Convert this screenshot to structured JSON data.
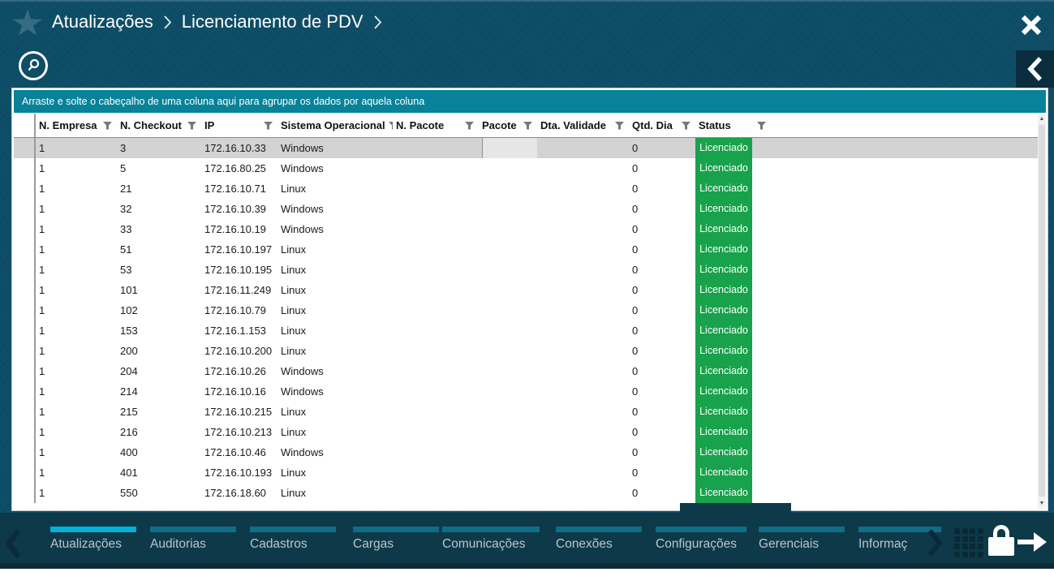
{
  "header": {
    "breadcrumb": [
      "Atualizações",
      "Licenciamento de PDV"
    ]
  },
  "group_bar": {
    "text": "Arraste e solte o cabeçalho de uma coluna aqui para agrupar os dados por aquela coluna"
  },
  "table": {
    "columns": [
      "N. Empresa",
      "N. Checkout",
      "IP",
      "Sistema Operacional",
      "N. Pacote",
      "Pacote",
      "Dta. Validade",
      "Qtd. Dia",
      "Status"
    ],
    "selected_row_index": 0,
    "inline_editor": {
      "column": "Pacote",
      "value": ""
    },
    "rows": [
      {
        "empresa": "1",
        "checkout": "3",
        "ip": "172.16.10.33",
        "so": "Windows",
        "n_pacote": "",
        "pacote": "",
        "dta_validade": "",
        "qtd_dia": "0",
        "status": "Licenciado"
      },
      {
        "empresa": "1",
        "checkout": "5",
        "ip": "172.16.80.25",
        "so": "Windows",
        "n_pacote": "",
        "pacote": "",
        "dta_validade": "",
        "qtd_dia": "0",
        "status": "Licenciado"
      },
      {
        "empresa": "1",
        "checkout": "21",
        "ip": "172.16.10.71",
        "so": "Linux",
        "n_pacote": "",
        "pacote": "",
        "dta_validade": "",
        "qtd_dia": "0",
        "status": "Licenciado"
      },
      {
        "empresa": "1",
        "checkout": "32",
        "ip": "172.16.10.39",
        "so": "Windows",
        "n_pacote": "",
        "pacote": "",
        "dta_validade": "",
        "qtd_dia": "0",
        "status": "Licenciado"
      },
      {
        "empresa": "1",
        "checkout": "33",
        "ip": "172.16.10.19",
        "so": "Windows",
        "n_pacote": "",
        "pacote": "",
        "dta_validade": "",
        "qtd_dia": "0",
        "status": "Licenciado"
      },
      {
        "empresa": "1",
        "checkout": "51",
        "ip": "172.16.10.197",
        "so": "Linux",
        "n_pacote": "",
        "pacote": "",
        "dta_validade": "",
        "qtd_dia": "0",
        "status": "Licenciado"
      },
      {
        "empresa": "1",
        "checkout": "53",
        "ip": "172.16.10.195",
        "so": "Linux",
        "n_pacote": "",
        "pacote": "",
        "dta_validade": "",
        "qtd_dia": "0",
        "status": "Licenciado"
      },
      {
        "empresa": "1",
        "checkout": "101",
        "ip": "172.16.11.249",
        "so": "Linux",
        "n_pacote": "",
        "pacote": "",
        "dta_validade": "",
        "qtd_dia": "0",
        "status": "Licenciado"
      },
      {
        "empresa": "1",
        "checkout": "102",
        "ip": "172.16.10.79",
        "so": "Linux",
        "n_pacote": "",
        "pacote": "",
        "dta_validade": "",
        "qtd_dia": "0",
        "status": "Licenciado"
      },
      {
        "empresa": "1",
        "checkout": "153",
        "ip": "172.16.1.153",
        "so": "Linux",
        "n_pacote": "",
        "pacote": "",
        "dta_validade": "",
        "qtd_dia": "0",
        "status": "Licenciado"
      },
      {
        "empresa": "1",
        "checkout": "200",
        "ip": "172.16.10.200",
        "so": "Linux",
        "n_pacote": "",
        "pacote": "",
        "dta_validade": "",
        "qtd_dia": "0",
        "status": "Licenciado"
      },
      {
        "empresa": "1",
        "checkout": "204",
        "ip": "172.16.10.26",
        "so": "Windows",
        "n_pacote": "",
        "pacote": "",
        "dta_validade": "",
        "qtd_dia": "0",
        "status": "Licenciado"
      },
      {
        "empresa": "1",
        "checkout": "214",
        "ip": "172.16.10.16",
        "so": "Windows",
        "n_pacote": "",
        "pacote": "",
        "dta_validade": "",
        "qtd_dia": "0",
        "status": "Licenciado"
      },
      {
        "empresa": "1",
        "checkout": "215",
        "ip": "172.16.10.215",
        "so": "Linux",
        "n_pacote": "",
        "pacote": "",
        "dta_validade": "",
        "qtd_dia": "0",
        "status": "Licenciado"
      },
      {
        "empresa": "1",
        "checkout": "216",
        "ip": "172.16.10.213",
        "so": "Linux",
        "n_pacote": "",
        "pacote": "",
        "dta_validade": "",
        "qtd_dia": "0",
        "status": "Licenciado"
      },
      {
        "empresa": "1",
        "checkout": "400",
        "ip": "172.16.10.46",
        "so": "Windows",
        "n_pacote": "",
        "pacote": "",
        "dta_validade": "",
        "qtd_dia": "0",
        "status": "Licenciado"
      },
      {
        "empresa": "1",
        "checkout": "401",
        "ip": "172.16.10.193",
        "so": "Linux",
        "n_pacote": "",
        "pacote": "",
        "dta_validade": "",
        "qtd_dia": "0",
        "status": "Licenciado"
      },
      {
        "empresa": "1",
        "checkout": "550",
        "ip": "172.16.18.60",
        "so": "Linux",
        "n_pacote": "",
        "pacote": "",
        "dta_validade": "",
        "qtd_dia": "0",
        "status": "Licenciado"
      }
    ]
  },
  "nav": {
    "tabs": [
      {
        "label": "Atualizações",
        "active": true
      },
      {
        "label": "Auditorias",
        "active": false
      },
      {
        "label": "Cadastros",
        "active": false
      },
      {
        "label": "Cargas",
        "active": false
      },
      {
        "label": "Comunicações",
        "active": false
      },
      {
        "label": "Conexões",
        "active": false
      },
      {
        "label": "Configurações",
        "active": false
      },
      {
        "label": "Gerenciais",
        "active": false
      },
      {
        "label": "Informaç",
        "active": false
      }
    ]
  },
  "colors": {
    "page_bg": "#0f4e68",
    "group_bar_teal": "#078299",
    "status_green": "#17a24b",
    "nav_bg": "#0e3949",
    "accent_cyan": "#00b1d8",
    "selected_row": "#d3d3d3"
  }
}
